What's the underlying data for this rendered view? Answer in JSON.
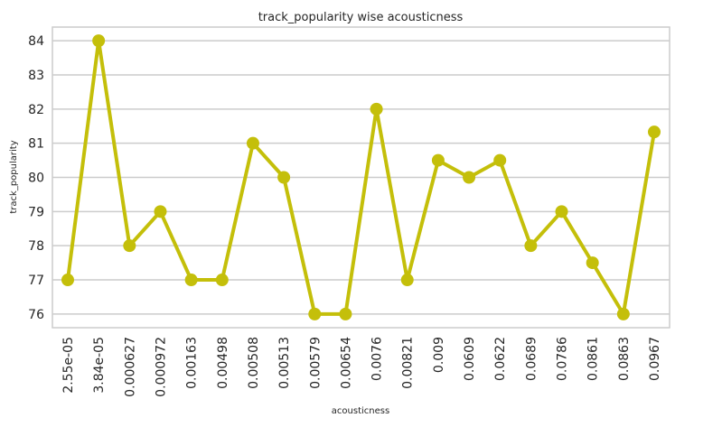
{
  "chart_data": {
    "type": "line",
    "title": "track_popularity wise acousticness",
    "xlabel": "acousticness",
    "ylabel": "track_popularity",
    "categories": [
      "2.55e-05",
      "3.84e-05",
      "0.000627",
      "0.000972",
      "0.00163",
      "0.00498",
      "0.00508",
      "0.00513",
      "0.00579",
      "0.00654",
      "0.0076",
      "0.00821",
      "0.009",
      "0.0609",
      "0.0622",
      "0.0689",
      "0.0786",
      "0.0861",
      "0.0863",
      "0.0967"
    ],
    "values": [
      77,
      84,
      78,
      79,
      77,
      77,
      81,
      80,
      76,
      76,
      82,
      77,
      80.5,
      80,
      80.5,
      78,
      79,
      77.5,
      76,
      81.33
    ],
    "ylim": [
      75.6,
      84.4
    ],
    "yticks": [
      76,
      77,
      78,
      79,
      80,
      81,
      82,
      83,
      84
    ],
    "grid": "horizontal",
    "color": "#c4bf0a",
    "grid_color": "#cccccc",
    "axis_color": "#cccccc"
  }
}
